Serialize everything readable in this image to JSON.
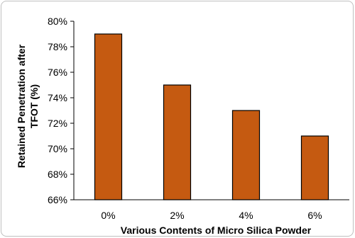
{
  "chart_data": {
    "type": "bar",
    "title": "",
    "categories": [
      "0%",
      "2%",
      "4%",
      "6%"
    ],
    "values": [
      79,
      75,
      73,
      71
    ],
    "ylim": [
      66,
      80
    ],
    "ytick_step": 2,
    "ytick_suffix": "%",
    "xlabel": "Various Contents of Micro Silica Powder",
    "ylabel_lines": [
      "Retained Penetration after",
      "TFOT (%)"
    ],
    "grid": false,
    "legend": "none",
    "bar_color": "#c55a11",
    "bar_edge_color": "#000000"
  }
}
